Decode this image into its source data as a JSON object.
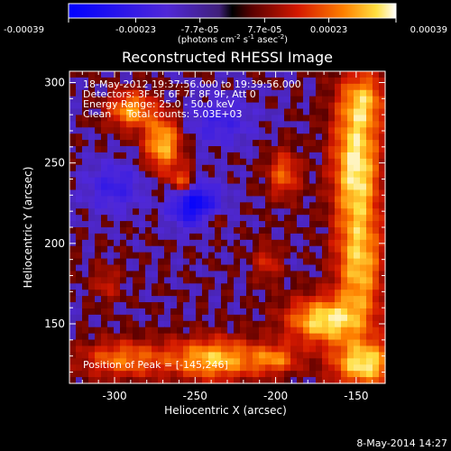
{
  "chart_data": {
    "type": "heatmap",
    "title": "Reconstructed RHESSI Image",
    "xlabel": "Heliocentric X (arcsec)",
    "ylabel": "Heliocentric Y (arcsec)",
    "xlim": [
      -328,
      -132
    ],
    "ylim": [
      113,
      307
    ],
    "x_ticks": [
      "-300",
      "-250",
      "-200",
      "-150"
    ],
    "x_tick_values": [
      -300,
      -250,
      -200,
      -150
    ],
    "y_ticks": [
      "150",
      "200",
      "250",
      "300"
    ],
    "y_tick_values": [
      150,
      200,
      250,
      300
    ],
    "colorbar": {
      "tick_labels": [
        "-0.00039",
        "-0.00023",
        "-7.7e-05",
        "7.7e-05",
        "0.00023",
        "0.00039"
      ],
      "range": [
        -0.00039,
        0.00039
      ],
      "unit_parts": [
        "(photons cm",
        "-2",
        " s",
        "-1",
        " asec",
        "-2",
        ")"
      ]
    },
    "annotations": [
      "18-May-2012 19:37:56.000 to 19:39:56.000",
      "Detectors: 3F 5F 6F 7F 8F 9F, Att 0",
      "Energy Range: 25.0 - 50.0 keV",
      "Clean     Total counts: 5.03E+03"
    ],
    "peak_label": "Position of Peak = [-145,246]",
    "peak_position": [
      -145,
      246
    ],
    "grid": false,
    "hot_regions": [
      {
        "x": -290,
        "y": 283,
        "sx": 10,
        "sy": 8,
        "a": 0.75
      },
      {
        "x": -270,
        "y": 262,
        "sx": 8,
        "sy": 12,
        "a": 0.85
      },
      {
        "x": -258,
        "y": 238,
        "sx": 5,
        "sy": 6,
        "a": 0.6
      },
      {
        "x": -195,
        "y": 243,
        "sx": 7,
        "sy": 10,
        "a": 0.55
      },
      {
        "x": -150,
        "y": 250,
        "sx": 10,
        "sy": 28,
        "a": 1.0
      },
      {
        "x": -145,
        "y": 290,
        "sx": 10,
        "sy": 12,
        "a": 0.55
      },
      {
        "x": -148,
        "y": 185,
        "sx": 10,
        "sy": 25,
        "a": 0.8
      },
      {
        "x": -170,
        "y": 152,
        "sx": 16,
        "sy": 10,
        "a": 0.95
      },
      {
        "x": -145,
        "y": 125,
        "sx": 14,
        "sy": 10,
        "a": 0.95
      },
      {
        "x": -238,
        "y": 128,
        "sx": 20,
        "sy": 9,
        "a": 0.85
      },
      {
        "x": -295,
        "y": 128,
        "sx": 18,
        "sy": 8,
        "a": 0.6
      },
      {
        "x": -200,
        "y": 128,
        "sx": 10,
        "sy": 6,
        "a": 0.55
      },
      {
        "x": -205,
        "y": 188,
        "sx": 6,
        "sy": 8,
        "a": 0.35
      },
      {
        "x": -240,
        "y": 215,
        "sx": 5,
        "sy": 5,
        "a": 0.35
      },
      {
        "x": -305,
        "y": 175,
        "sx": 6,
        "sy": 8,
        "a": 0.3
      }
    ],
    "cold_regions": [
      {
        "x": -250,
        "y": 224,
        "sx": 10,
        "sy": 9,
        "a": 0.9
      },
      {
        "x": -300,
        "y": 235,
        "sx": 12,
        "sy": 10,
        "a": 0.4
      },
      {
        "x": -235,
        "y": 275,
        "sx": 14,
        "sy": 10,
        "a": 0.35
      }
    ]
  },
  "footer": {
    "date": "8-May-2014 14:27"
  }
}
